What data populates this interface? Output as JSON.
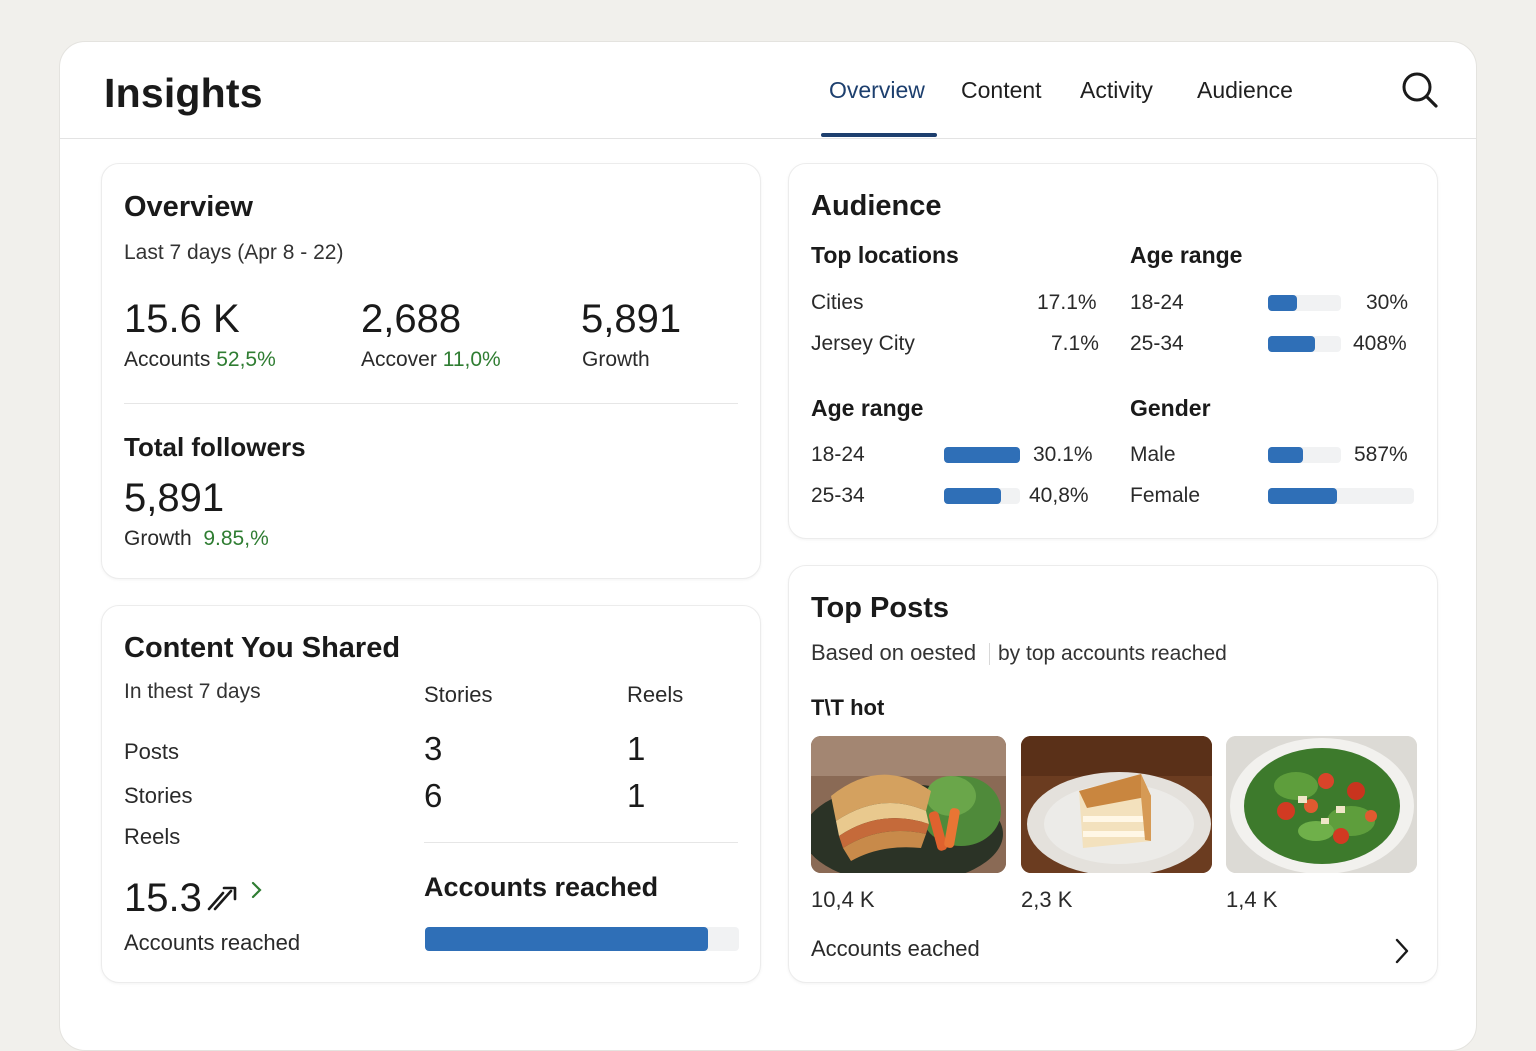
{
  "header": {
    "title": "Insights",
    "tabs": [
      {
        "label": "Overview",
        "active": true
      },
      {
        "label": "Content",
        "active": false
      },
      {
        "label": "Activity",
        "active": false
      },
      {
        "label": "Audience",
        "active": false
      }
    ],
    "search_icon": "search-icon"
  },
  "overview": {
    "title": "Overview",
    "period": "Last 7 days (Apr 8 - 22)",
    "metrics": [
      {
        "value": "15.6 K",
        "label": "Accounts",
        "change": "52,5%"
      },
      {
        "value": "2,688",
        "label": "Accover",
        "change": "11,0%"
      },
      {
        "value": "5,891",
        "label": "Growth",
        "change": ""
      }
    ],
    "followers_title": "Total followers",
    "followers_value": "5,891",
    "growth_label": "Growth",
    "growth_value": "9.85,%"
  },
  "content_shared": {
    "title": "Content You Shared",
    "period": "In thest 7 days",
    "columns": [
      "Stories",
      "Reels"
    ],
    "rows": [
      {
        "label": "Posts",
        "stories": "3",
        "reels": "1"
      },
      {
        "label": "Stories",
        "stories": "6",
        "reels": "1"
      },
      {
        "label": "Reels",
        "stories": "",
        "reels": ""
      }
    ],
    "reach_value": "15.3",
    "reach_label": "Accounts reached",
    "accounts_reached_title": "Accounts reached",
    "accounts_reached_fraction": 0.9
  },
  "audience": {
    "title": "Audience",
    "top_locations_title": "Top locations",
    "locations": [
      {
        "name": "Cities",
        "value": "17.1%"
      },
      {
        "name": "Jersey City",
        "value": "7.1%"
      }
    ],
    "age_range_right_title": "Age range",
    "age_right": [
      {
        "label": "18-24",
        "value": "30%",
        "fraction": 0.4
      },
      {
        "label": "25-34",
        "value": "408%",
        "fraction": 0.65
      }
    ],
    "age_range_left_title": "Age range",
    "age_left": [
      {
        "label": "18-24",
        "value": "30.1%",
        "fraction": 1.0
      },
      {
        "label": "25-34",
        "value": "40,8%",
        "fraction": 0.75
      }
    ],
    "gender_title": "Gender",
    "gender": [
      {
        "label": "Male",
        "value": "587%",
        "fraction": 0.48
      },
      {
        "label": "Female",
        "value": "",
        "fraction": 0.47
      }
    ],
    "bar_color": "#2f6fb7"
  },
  "top_posts": {
    "title": "Top Posts",
    "subtitle_left": "Based on oested",
    "subtitle_right": "by top  accounts reached",
    "section_label": "T\\T hot",
    "posts": [
      {
        "image": "sandwich-photo",
        "value": "10,4 K"
      },
      {
        "image": "cake-slice-photo",
        "value": "2,3 K"
      },
      {
        "image": "salad-bowl-photo",
        "value": "1,4 K"
      }
    ],
    "footer_label": "Accounts eached"
  }
}
